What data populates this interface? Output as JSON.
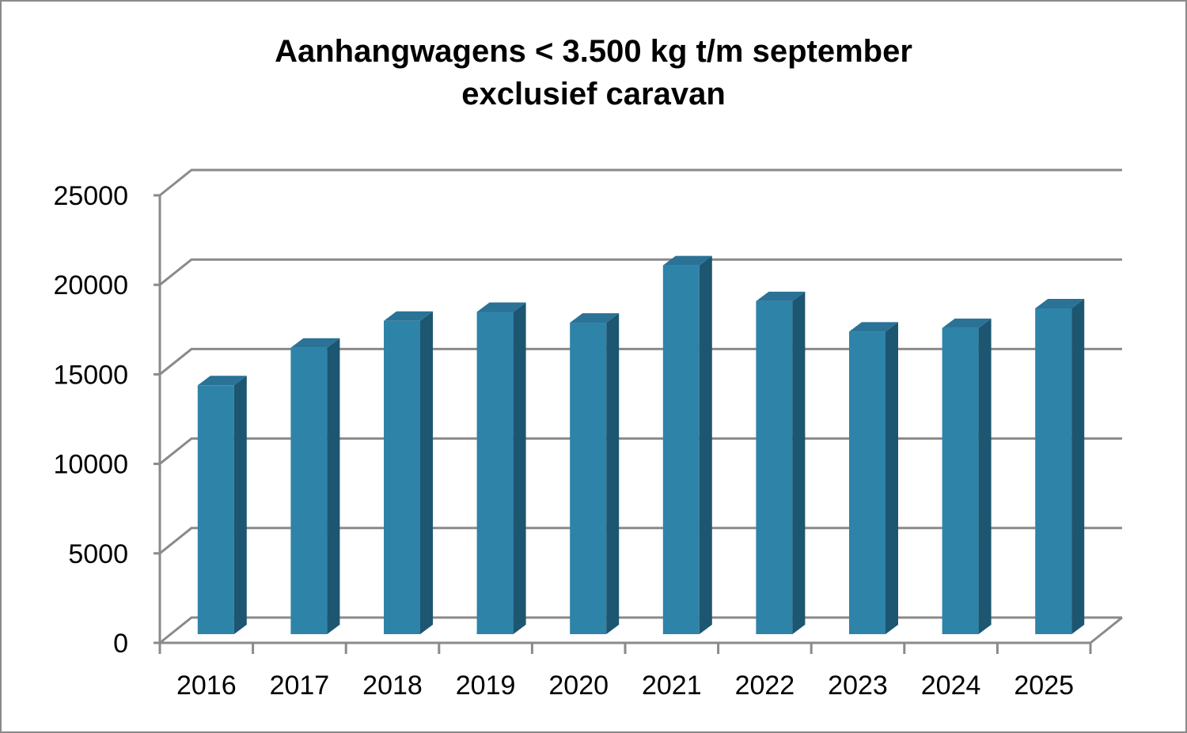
{
  "chart_data": {
    "type": "bar",
    "title": "Aanhangwagens < 3.500 kg t/m september",
    "subtitle": "exclusief caravan",
    "categories": [
      "2016",
      "2017",
      "2018",
      "2019",
      "2020",
      "2021",
      "2022",
      "2023",
      "2024",
      "2025"
    ],
    "values": [
      13900,
      16000,
      17500,
      18000,
      17400,
      20600,
      18600,
      16900,
      17100,
      18200
    ],
    "ylim": [
      0,
      25000
    ],
    "yticks": [
      "0",
      "5000",
      "10000",
      "15000",
      "20000",
      "25000"
    ],
    "xlabel": "",
    "ylabel": "",
    "grid": true,
    "legend": "none",
    "style": "3d-column"
  },
  "colors": {
    "bar_front": "#2e83a8",
    "bar_side": "#1d5670",
    "bar_top": "#2a7296",
    "grid": "#8a8a8a"
  }
}
